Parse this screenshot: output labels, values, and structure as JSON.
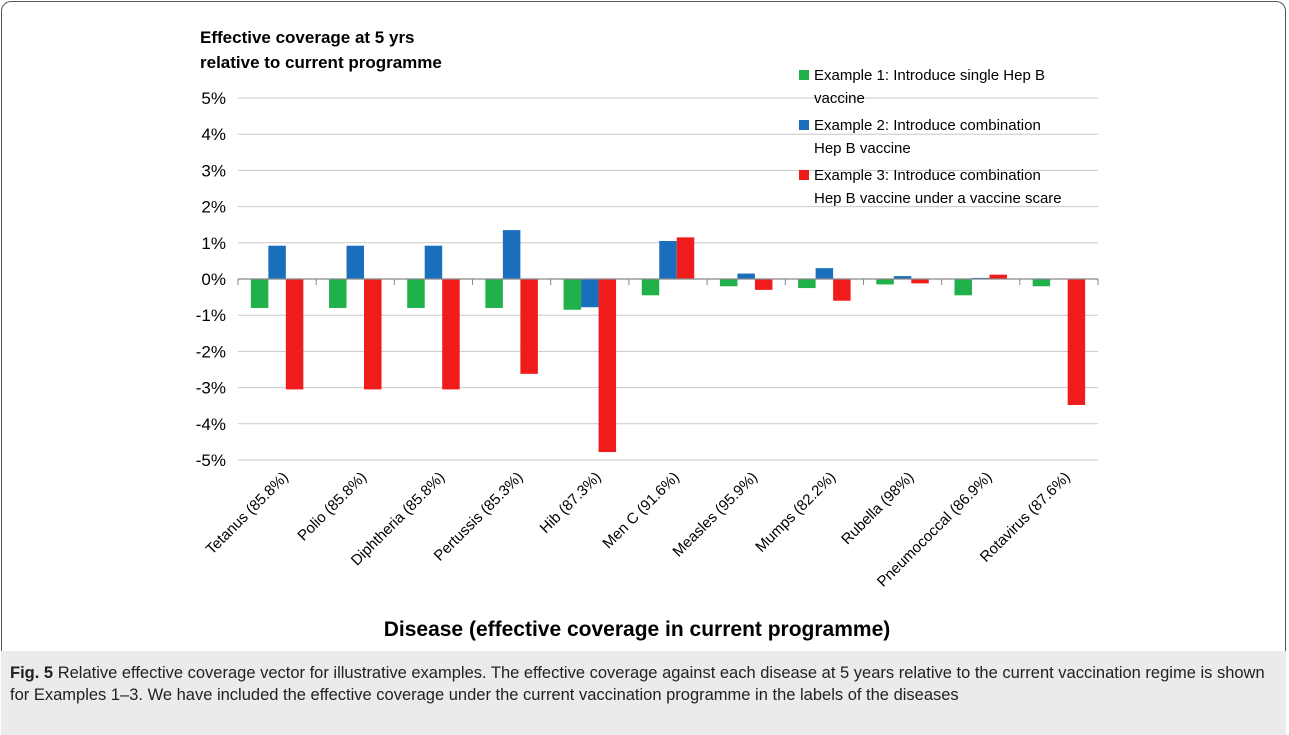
{
  "chart_data": {
    "type": "bar",
    "ylabel_lines": [
      "Effective coverage at 5 yrs",
      "relative to current programme"
    ],
    "xlabel": "Disease (effective coverage in current programme)",
    "ylim": [
      -5,
      5
    ],
    "yticks": [
      "5%",
      "4%",
      "3%",
      "2%",
      "1%",
      "0%",
      "-1%",
      "-2%",
      "-3%",
      "-4%",
      "-5%"
    ],
    "ytick_values": [
      5,
      4,
      3,
      2,
      1,
      0,
      -1,
      -2,
      -3,
      -4,
      -5
    ],
    "grid": true,
    "legend_position": "top-right",
    "categories": [
      "Tetanus (85.8%)",
      "Polio (85.8%)",
      "Diphtheria (85.8%)",
      "Pertussis (85.3%)",
      "Hib  (87.3%)",
      "Men C (91.6%)",
      "Measles (95.9%)",
      "Mumps (82.2%)",
      "Rubella (98%)",
      "Pneumococcal (86.9%)",
      "Rotavirus (87.6%)"
    ],
    "series": [
      {
        "name": "Example 1: Introduce single Hep B vaccine",
        "legend_lines": [
          "Example 1: Introduce single Hep B",
          "vaccine"
        ],
        "color": "#21b14b",
        "values": [
          -0.8,
          -0.8,
          -0.8,
          -0.8,
          -0.85,
          -0.45,
          -0.2,
          -0.25,
          -0.15,
          -0.45,
          -0.2
        ]
      },
      {
        "name": "Example 2: Introduce combination Hep B vaccine",
        "legend_lines": [
          "Example 2: Introduce combination",
          "Hep B vaccine"
        ],
        "color": "#1a6fbd",
        "values": [
          0.92,
          0.92,
          0.92,
          1.35,
          -0.78,
          1.05,
          0.15,
          0.3,
          0.08,
          0.03,
          0.0
        ]
      },
      {
        "name": "Example 3: Introduce combination Hep B vaccine under a vaccine scare",
        "legend_lines": [
          "Example 3: Introduce combination",
          "Hep B vaccine under a vaccine scare"
        ],
        "color": "#f01c1c",
        "values": [
          -3.05,
          -3.05,
          -3.05,
          -2.62,
          -4.78,
          1.15,
          -0.3,
          -0.6,
          -0.12,
          0.12,
          -3.48
        ]
      }
    ]
  },
  "caption": {
    "label": "Fig. 5",
    "text": "Relative effective coverage vector for illustrative examples. The effective coverage against each disease at 5 years relative to the current vaccination regime is shown for Examples 1–3. We have included the effective coverage under the current vaccination programme in the labels of the diseases"
  }
}
